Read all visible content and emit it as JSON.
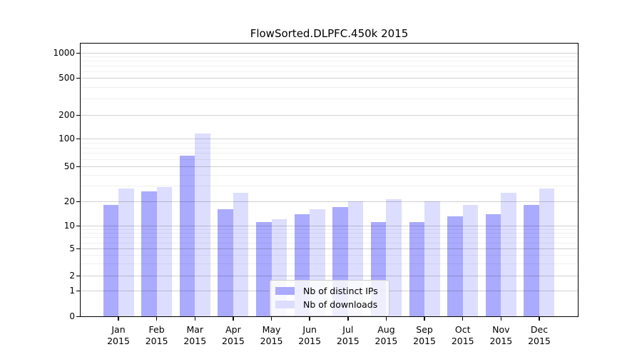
{
  "chart_data": {
    "type": "bar",
    "title": "FlowSorted.DLPFC.450k 2015",
    "categories": [
      "Jan",
      "Feb",
      "Mar",
      "Apr",
      "May",
      "Jun",
      "Jul",
      "Aug",
      "Sep",
      "Oct",
      "Nov",
      "Dec"
    ],
    "category_year": "2015",
    "series": [
      {
        "name": "Nb of distinct IPs",
        "color": "#aaaaff",
        "values": [
          18,
          26,
          65,
          16,
          11,
          14,
          17,
          11,
          11,
          13,
          14,
          18
        ]
      },
      {
        "name": "Nb of downloads",
        "color": "#ddddff",
        "values": [
          28,
          29,
          115,
          25,
          12,
          16,
          20,
          21,
          20,
          18,
          25,
          28
        ]
      }
    ],
    "xlabel": "",
    "ylabel": "",
    "yscale": "symlog",
    "ylim": [
      0,
      1400
    ],
    "y_ticks": [
      0,
      1,
      2,
      5,
      10,
      20,
      50,
      100,
      200,
      500,
      1000
    ],
    "y_minor_ticks": [
      3,
      4,
      6,
      7,
      8,
      9,
      30,
      40,
      60,
      70,
      80,
      90,
      300,
      400,
      600,
      700,
      800,
      900
    ],
    "grid": true,
    "legend_position": "lower center"
  }
}
